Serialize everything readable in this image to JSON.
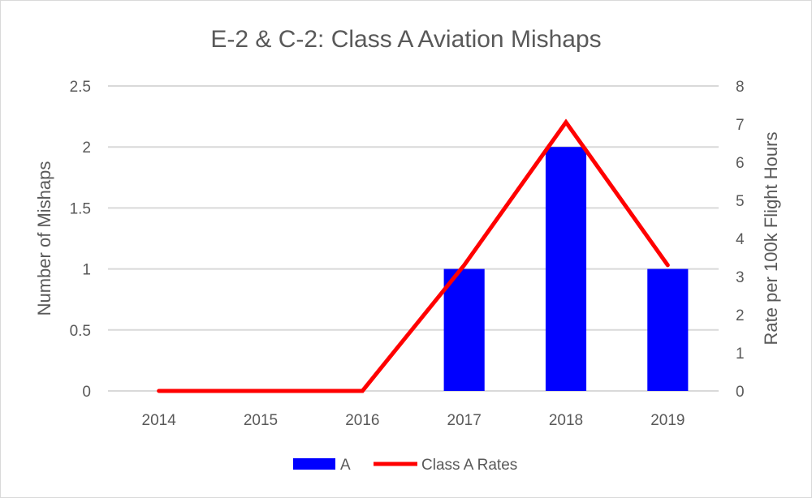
{
  "chart_data": {
    "type": "bar",
    "title": "E-2 & C-2: Class A Aviation Mishaps",
    "categories": [
      "2014",
      "2015",
      "2016",
      "2017",
      "2018",
      "2019"
    ],
    "series": [
      {
        "name": "A",
        "kind": "bar",
        "axis": "left",
        "color": "#0000ff",
        "values": [
          0,
          0,
          0,
          1,
          2,
          1
        ]
      },
      {
        "name": "Class A Rates",
        "kind": "line",
        "axis": "right",
        "color": "#ff0000",
        "values": [
          0,
          0,
          0,
          3.3,
          7.05,
          3.3
        ]
      }
    ],
    "ylabel": "Number of Mishaps",
    "ylim": [
      0,
      2.5
    ],
    "yticks": [
      "0",
      "0.5",
      "1",
      "1.5",
      "2",
      "2.5"
    ],
    "y2label": "Rate per 100k Flight Hours",
    "y2lim": [
      0,
      8
    ],
    "y2ticks": [
      "0",
      "1",
      "2",
      "3",
      "4",
      "5",
      "6",
      "7",
      "8"
    ],
    "grid": true,
    "legend": "bottom-center"
  }
}
